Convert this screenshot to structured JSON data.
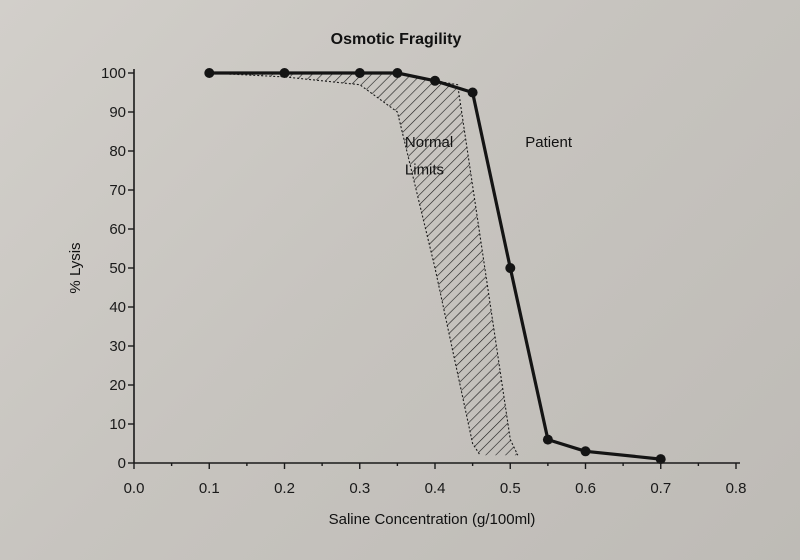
{
  "chart_data": {
    "type": "line",
    "title": "Osmotic Fragility",
    "xlabel": "Saline Concentration (g/100ml)",
    "ylabel": "% Lysis",
    "xlim": [
      0.0,
      0.8
    ],
    "ylim": [
      0,
      100
    ],
    "x_ticks": [
      0.0,
      0.1,
      0.2,
      0.3,
      0.4,
      0.5,
      0.6,
      0.7,
      0.8
    ],
    "x_tick_labels": [
      "0.0",
      "0.1",
      "0.2",
      "0.3",
      "0.4",
      "0.5",
      "0.6",
      "0.7",
      "0.8"
    ],
    "y_ticks": [
      0,
      10,
      20,
      30,
      40,
      50,
      60,
      70,
      80,
      90,
      100
    ],
    "y_tick_labels": [
      "0",
      "10",
      "20",
      "30",
      "40",
      "50",
      "60",
      "70",
      "80",
      "90",
      "100"
    ],
    "grid": false,
    "series": [
      {
        "name": "Patient",
        "x": [
          0.1,
          0.2,
          0.3,
          0.35,
          0.4,
          0.45,
          0.5,
          0.55,
          0.6,
          0.7
        ],
        "y": [
          100,
          100,
          100,
          100,
          98,
          95,
          50,
          6,
          3,
          1
        ]
      }
    ],
    "band": {
      "name": "Normal Limits",
      "upper": {
        "x": [
          0.1,
          0.2,
          0.3,
          0.35,
          0.4,
          0.43,
          0.5,
          0.51
        ],
        "y": [
          100,
          100,
          100,
          100,
          98,
          97,
          6,
          2
        ]
      },
      "lower": {
        "x": [
          0.1,
          0.2,
          0.3,
          0.35,
          0.4,
          0.45,
          0.46
        ],
        "y": [
          100,
          99,
          97,
          90,
          50,
          5,
          2
        ]
      }
    },
    "annotations": [
      {
        "text": "Normal",
        "x": 0.36,
        "y": 81
      },
      {
        "text": "Limits",
        "x": 0.36,
        "y": 74
      },
      {
        "text": "Patient",
        "x": 0.52,
        "y": 81
      }
    ],
    "colors": {
      "line": "#141414",
      "hatch": "#1a1a1a",
      "background": "#c9c6c1"
    }
  }
}
